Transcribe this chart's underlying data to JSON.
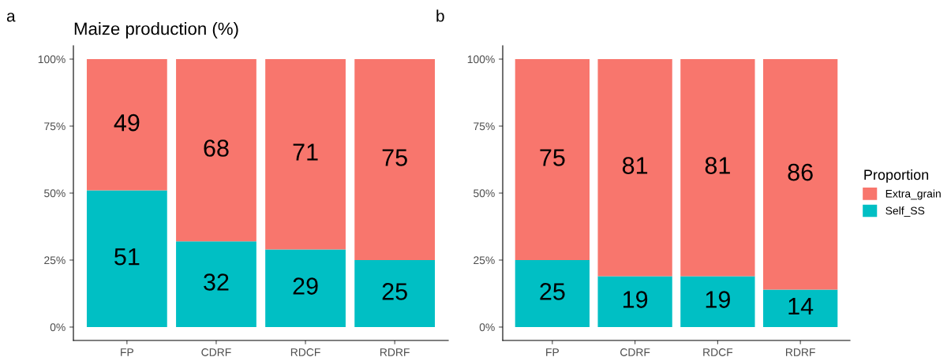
{
  "chart_data": [
    {
      "type": "bar",
      "stacked": true,
      "title": "Maize production (%)",
      "annotations": [
        "a"
      ],
      "categories": [
        "FP",
        "CDRF",
        "RDCF",
        "RDRF"
      ],
      "series": [
        {
          "color": "#00bfc4",
          "values": [
            51,
            32,
            29,
            25
          ]
        },
        {
          "color": "#f8766d",
          "values": [
            49,
            68,
            71,
            75
          ]
        }
      ],
      "ylim": [
        -5,
        105
      ],
      "yticks": [
        {
          "value": 0,
          "label": "0%"
        },
        {
          "value": 25,
          "label": "25%"
        },
        {
          "value": 50,
          "label": "50%"
        },
        {
          "value": 75,
          "label": "75%"
        },
        {
          "value": 100,
          "label": "100%"
        }
      ],
      "data_labels": true,
      "grid": false,
      "legend": false
    },
    {
      "type": "bar",
      "stacked": true,
      "annotations": [
        "b"
      ],
      "legend_title": "Proportion",
      "categories": [
        "FP",
        "CDRF",
        "RDCF",
        "RDRF"
      ],
      "series": [
        {
          "name": "Self_SS",
          "color": "#00bfc4",
          "values": [
            25,
            19,
            19,
            14
          ]
        },
        {
          "name": "Extra_grain",
          "color": "#f8766d",
          "values": [
            75,
            81,
            81,
            86
          ]
        }
      ],
      "ylim": [
        -5,
        105
      ],
      "yticks": [
        {
          "value": 0,
          "label": "0%"
        },
        {
          "value": 25,
          "label": "25%"
        },
        {
          "value": 50,
          "label": "50%"
        },
        {
          "value": 75,
          "label": "75%"
        },
        {
          "value": 100,
          "label": "100%"
        }
      ],
      "data_labels": true,
      "grid": false,
      "legend": "right"
    }
  ]
}
